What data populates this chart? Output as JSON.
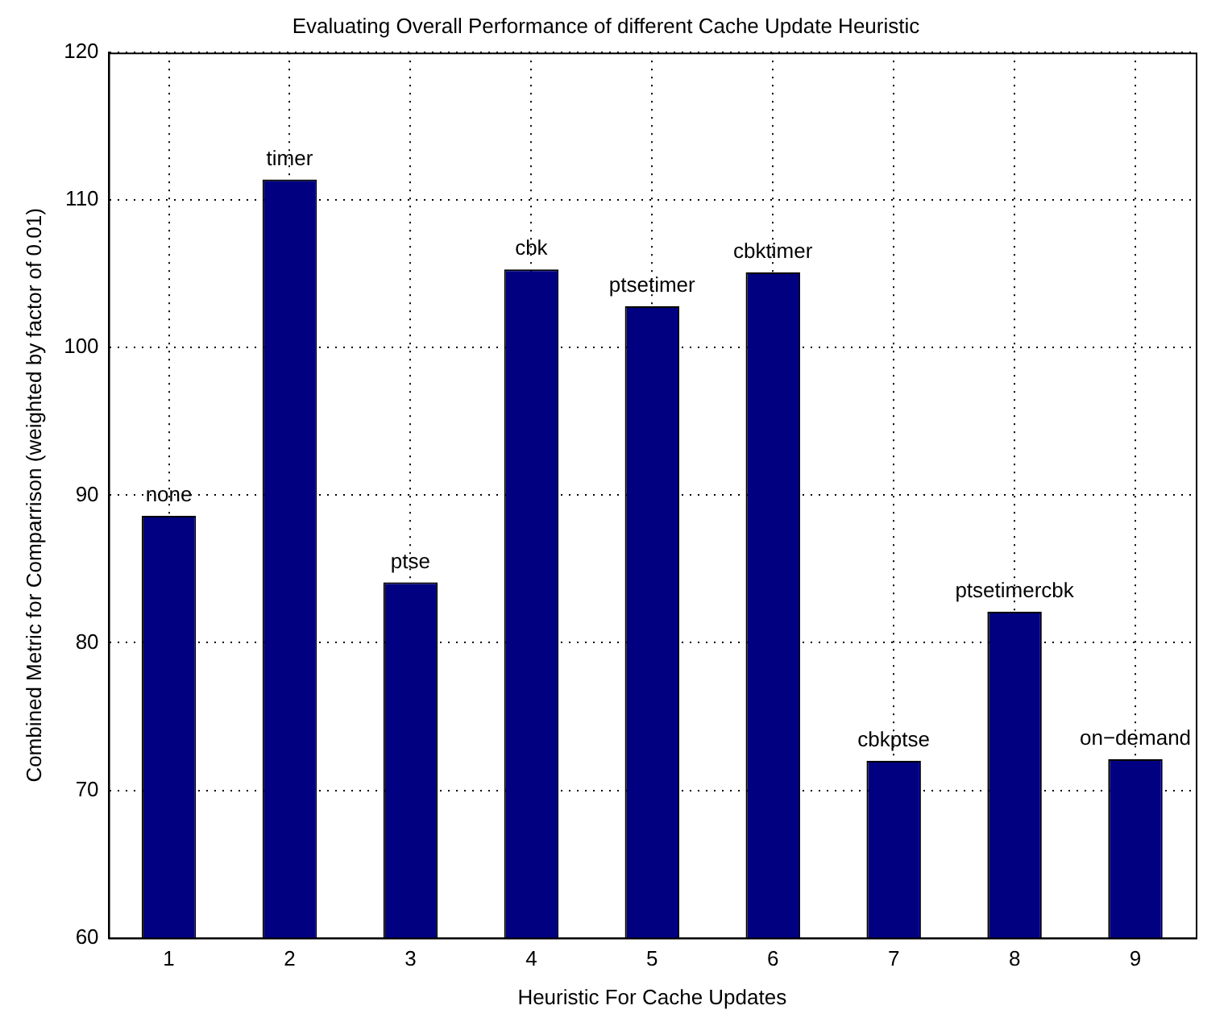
{
  "chart_data": {
    "type": "bar",
    "title": "Evaluating Overall Performance of different Cache Update Heuristic",
    "xlabel": "Heuristic For Cache Updates",
    "ylabel": "Combined Metric for Comparrison (weighted by factor of 0.01)",
    "categories": [
      "1",
      "2",
      "3",
      "4",
      "5",
      "6",
      "7",
      "8",
      "9"
    ],
    "values": [
      88.6,
      111.4,
      84.1,
      105.3,
      102.8,
      105.1,
      72.0,
      82.1,
      72.1
    ],
    "color": "#000080",
    "ylim": [
      60,
      120
    ],
    "yticks": [
      60,
      70,
      80,
      90,
      100,
      110,
      120
    ],
    "grid": true,
    "legend": false,
    "annotations": [
      {
        "text": "none",
        "x": "1",
        "y": 88.6
      },
      {
        "text": "timer",
        "x": "2",
        "y": 111.4
      },
      {
        "text": "ptse",
        "x": "3",
        "y": 84.1
      },
      {
        "text": "cbk",
        "x": "4",
        "y": 105.3
      },
      {
        "text": "ptsetimer",
        "x": "5",
        "y": 102.8
      },
      {
        "text": "cbktimer",
        "x": "6",
        "y": 105.1
      },
      {
        "text": "cbkptse",
        "x": "7",
        "y": 72.0
      },
      {
        "text": "ptsetimercbk",
        "x": "8",
        "y": 82.1
      },
      {
        "text": "on−demand",
        "x": "9",
        "y": 72.1
      }
    ]
  }
}
